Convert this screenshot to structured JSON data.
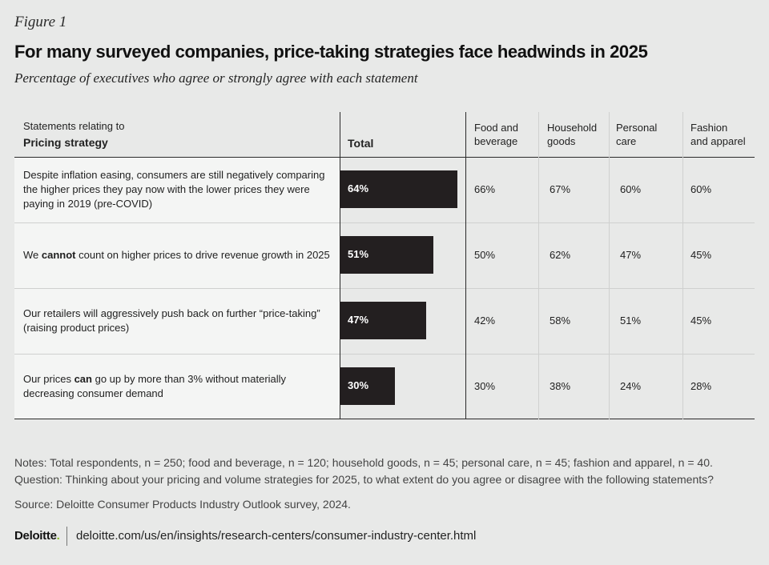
{
  "figure_label": "Figure 1",
  "title": "For many surveyed companies, price-taking strategies face headwinds in 2025",
  "subtitle": "Percentage of executives who agree or strongly agree with each statement",
  "table_header": {
    "statements_caption": "Statements relating to",
    "statements_title": "Pricing strategy",
    "total": "Total",
    "segments": [
      {
        "line1": "Food and",
        "line2": "beverage"
      },
      {
        "line1": "Household",
        "line2": "goods"
      },
      {
        "line1": "Personal",
        "line2": "care"
      },
      {
        "line1": "Fashion",
        "line2": "and apparel"
      }
    ]
  },
  "rows": [
    {
      "parts": [
        {
          "text": "Despite inflation easing, consumers are still negatively comparing the higher prices they pay now with the lower prices they were paying in 2019 (pre-COVID)",
          "bold": false
        }
      ],
      "total_label": "64%",
      "segments": [
        "66%",
        "67%",
        "60%",
        "60%"
      ]
    },
    {
      "parts": [
        {
          "text": "We ",
          "bold": false
        },
        {
          "text": "cannot",
          "bold": true
        },
        {
          "text": " count on higher prices to drive revenue growth in 2025",
          "bold": false
        }
      ],
      "total_label": "51%",
      "segments": [
        "50%",
        "62%",
        "47%",
        "45%"
      ]
    },
    {
      "parts": [
        {
          "text": "Our retailers will aggressively push back on further “price-taking” (raising product prices)",
          "bold": false
        }
      ],
      "total_label": "47%",
      "segments": [
        "42%",
        "58%",
        "51%",
        "45%"
      ]
    },
    {
      "parts": [
        {
          "text": "Our prices ",
          "bold": false
        },
        {
          "text": "can",
          "bold": true
        },
        {
          "text": " go up by more than 3% without materially decreasing consumer demand",
          "bold": false
        }
      ],
      "total_label": "30%",
      "segments": [
        "30%",
        "38%",
        "24%",
        "28%"
      ]
    }
  ],
  "chart_data": {
    "type": "bar",
    "orientation": "horizontal",
    "categories": [
      "Despite inflation easing, consumers are still negatively comparing the higher prices they pay now with the lower prices they were paying in 2019 (pre-COVID)",
      "We cannot count on higher prices to drive revenue growth in 2025",
      "Our retailers will aggressively push back on further “price-taking” (raising product prices)",
      "Our prices can go up by more than 3% without materially decreasing consumer demand"
    ],
    "series": [
      {
        "name": "Total",
        "values": [
          64,
          51,
          47,
          30
        ]
      },
      {
        "name": "Food and beverage",
        "values": [
          66,
          50,
          42,
          30
        ]
      },
      {
        "name": "Household goods",
        "values": [
          67,
          62,
          58,
          38
        ]
      },
      {
        "name": "Personal care",
        "values": [
          60,
          47,
          51,
          24
        ]
      },
      {
        "name": "Fashion and apparel",
        "values": [
          60,
          45,
          45,
          28
        ]
      }
    ],
    "unit": "%",
    "xlim": [
      0,
      100
    ],
    "bar_color": "#231f20",
    "grid": false
  },
  "notes": "Notes: Total respondents, n = 250; food and beverage, n = 120; household goods, n = 45; personal care, n = 45; fashion and apparel, n = 40. Question: Thinking about your pricing and volume strategies for 2025, to what extent do you agree or disagree with the following statements?",
  "source": "Source: Deloitte Consumer Products Industry Outlook survey, 2024.",
  "footer": {
    "logo_text": "Deloitte",
    "logo_dot": ".",
    "url": "deloitte.com/us/en/insights/research-centers/consumer-industry-center.html"
  },
  "colors": {
    "background": "#e8e9e8",
    "bar": "#231f20",
    "logo_accent": "#86bc25"
  }
}
